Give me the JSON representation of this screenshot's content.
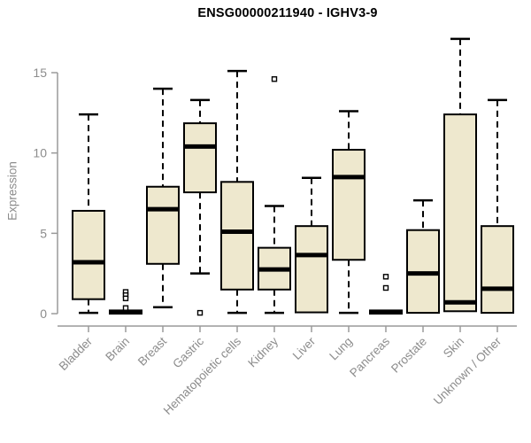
{
  "colors": {
    "box_fill": "#EEE8CE",
    "box_border": "#000000",
    "median": "#000000",
    "whisker": "#000000",
    "axis_line": "#9a9a9a",
    "tick_text": "#8c8c8c",
    "title_text": "#000000",
    "outlier_fill": "#ffffff"
  },
  "chart_data": {
    "type": "boxplot",
    "title": "ENSG00000211940 - IGHV3-9",
    "xlabel": "",
    "ylabel": "Expression",
    "ylim": [
      0,
      15
    ],
    "yticks": [
      0,
      5,
      10,
      15
    ],
    "grid": false,
    "legend": "none",
    "categories": [
      "Bladder",
      "Brain",
      "Breast",
      "Gastric",
      "Hematopoietic cells",
      "Kidney",
      "Liver",
      "Lung",
      "Pancreas",
      "Prostate",
      "Skin",
      "Unknown / Other"
    ],
    "series": [
      {
        "name": "Bladder",
        "whisker_low": 0.05,
        "q1": 0.9,
        "median": 3.2,
        "q3": 6.4,
        "whisker_high": 12.4,
        "outliers": []
      },
      {
        "name": "Brain",
        "whisker_low": 0,
        "q1": 0,
        "median": 0.08,
        "q3": 0.2,
        "whisker_high": 0.2,
        "outliers": [
          1.35,
          1.15,
          0.95,
          0.35
        ]
      },
      {
        "name": "Breast",
        "whisker_low": 0.4,
        "q1": 3.1,
        "median": 6.5,
        "q3": 7.9,
        "whisker_high": 14.0,
        "outliers": []
      },
      {
        "name": "Gastric",
        "whisker_low": 2.5,
        "q1": 7.55,
        "median": 10.4,
        "q3": 11.85,
        "whisker_high": 13.3,
        "outliers": [
          0.05
        ]
      },
      {
        "name": "Hematopoietic cells",
        "whisker_low": 0.05,
        "q1": 1.5,
        "median": 5.1,
        "q3": 8.2,
        "whisker_high": 15.1,
        "outliers": []
      },
      {
        "name": "Kidney",
        "whisker_low": 0.05,
        "q1": 1.5,
        "median": 2.75,
        "q3": 4.1,
        "whisker_high": 6.7,
        "outliers": [
          14.6
        ]
      },
      {
        "name": "Liver",
        "whisker_low": 0.08,
        "q1": 0.08,
        "median": 3.65,
        "q3": 5.45,
        "whisker_high": 8.45,
        "outliers": []
      },
      {
        "name": "Lung",
        "whisker_low": 0.05,
        "q1": 3.35,
        "median": 8.5,
        "q3": 10.2,
        "whisker_high": 12.6,
        "outliers": []
      },
      {
        "name": "Pancreas",
        "whisker_low": 0,
        "q1": 0,
        "median": 0.08,
        "q3": 0.2,
        "whisker_high": 0.2,
        "outliers": [
          2.3,
          1.6
        ]
      },
      {
        "name": "Prostate",
        "whisker_low": 0.05,
        "q1": 0.05,
        "median": 2.5,
        "q3": 5.2,
        "whisker_high": 7.05,
        "outliers": []
      },
      {
        "name": "Skin",
        "whisker_low": 0.15,
        "q1": 0.15,
        "median": 0.7,
        "q3": 12.4,
        "whisker_high": 17.1,
        "outliers": []
      },
      {
        "name": "Unknown / Other",
        "whisker_low": 0.05,
        "q1": 0.05,
        "median": 1.55,
        "q3": 5.45,
        "whisker_high": 13.3,
        "outliers": []
      }
    ]
  }
}
